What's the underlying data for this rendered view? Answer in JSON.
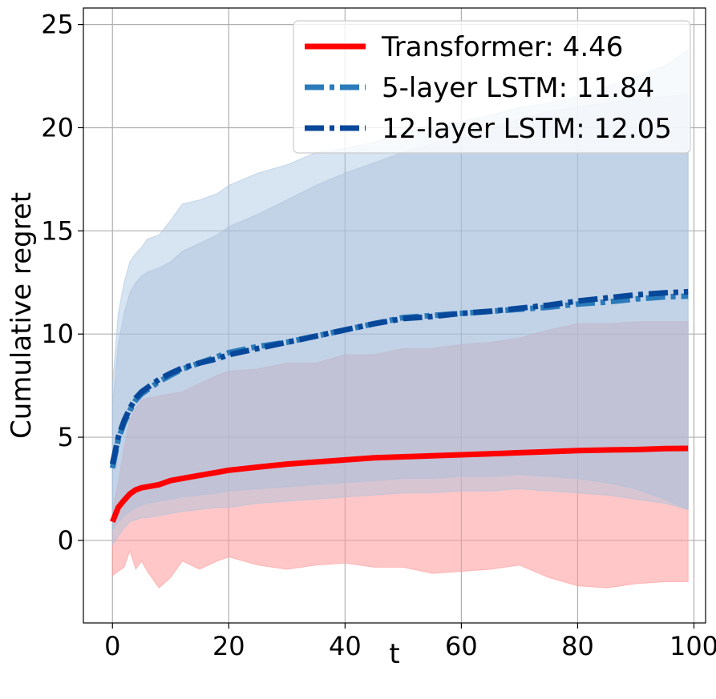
{
  "chart_data": {
    "type": "line",
    "xlabel": "t",
    "ylabel": "Cumulative regret",
    "xlim": [
      -5,
      102
    ],
    "ylim": [
      -4,
      25.8
    ],
    "xticks": [
      0,
      20,
      40,
      60,
      80,
      100
    ],
    "yticks": [
      0,
      5,
      10,
      15,
      20,
      25
    ],
    "grid": true,
    "legend_position": "top-right",
    "series": [
      {
        "name": "Transformer: 4.46",
        "color": "#ff0000",
        "band_color": "#ff9999",
        "style": "solid",
        "x": [
          0,
          1,
          2,
          3,
          4,
          5,
          6,
          8,
          10,
          12,
          15,
          18,
          20,
          25,
          30,
          35,
          40,
          45,
          50,
          55,
          60,
          65,
          70,
          75,
          80,
          85,
          90,
          95,
          99
        ],
        "mean": [
          0.9,
          1.6,
          1.95,
          2.25,
          2.45,
          2.55,
          2.6,
          2.7,
          2.9,
          3.0,
          3.15,
          3.3,
          3.4,
          3.55,
          3.7,
          3.8,
          3.9,
          4.0,
          4.05,
          4.1,
          4.15,
          4.2,
          4.25,
          4.3,
          4.35,
          4.38,
          4.4,
          4.45,
          4.46
        ],
        "upper": [
          1.5,
          2.8,
          4.5,
          5.9,
          6.4,
          6.8,
          6.9,
          7.0,
          7.1,
          7.2,
          7.6,
          8.0,
          8.2,
          8.3,
          8.6,
          8.6,
          9.0,
          9.0,
          9.3,
          9.3,
          9.5,
          9.6,
          9.8,
          10.2,
          10.5,
          10.5,
          10.6,
          10.6,
          10.6
        ],
        "lower": [
          -1.7,
          -1.5,
          -1.3,
          -0.5,
          -1.4,
          -1.0,
          -1.5,
          -2.3,
          -1.8,
          -1.0,
          -1.4,
          -1.0,
          -0.8,
          -1.2,
          -1.4,
          -1.2,
          -1.1,
          -1.3,
          -1.3,
          -1.6,
          -1.5,
          -1.4,
          -1.2,
          -1.8,
          -2.2,
          -2.3,
          -2.1,
          -2.0,
          -2.0
        ]
      },
      {
        "name": "5-layer LSTM: 11.84",
        "color": "#2b7bba",
        "band_color": "#a6c4e0",
        "style": "dashdot",
        "x": [
          0,
          1,
          2,
          3,
          4,
          5,
          6,
          8,
          10,
          12,
          15,
          18,
          20,
          25,
          30,
          35,
          40,
          45,
          50,
          55,
          60,
          65,
          70,
          75,
          80,
          85,
          90,
          95,
          99
        ],
        "mean": [
          3.5,
          4.9,
          5.7,
          6.3,
          6.8,
          7.1,
          7.3,
          7.7,
          8.0,
          8.3,
          8.6,
          8.9,
          9.1,
          9.4,
          9.6,
          9.9,
          10.2,
          10.5,
          10.8,
          10.9,
          11.0,
          11.1,
          11.2,
          11.3,
          11.45,
          11.55,
          11.7,
          11.8,
          11.84
        ],
        "upper": [
          7.5,
          11.0,
          12.5,
          13.5,
          13.9,
          14.2,
          14.6,
          14.8,
          15.5,
          16.3,
          16.5,
          16.8,
          17.2,
          17.8,
          18.2,
          18.8,
          19.0,
          19.3,
          19.8,
          20.0,
          20.3,
          20.6,
          21.0,
          21.2,
          21.5,
          22.0,
          22.5,
          23.0,
          23.8
        ],
        "lower": [
          -0.2,
          0.2,
          0.6,
          0.9,
          1.0,
          1.1,
          1.1,
          1.2,
          1.3,
          1.4,
          1.5,
          1.6,
          1.6,
          1.8,
          1.9,
          2.0,
          2.1,
          2.2,
          2.3,
          2.3,
          2.4,
          2.4,
          2.5,
          2.4,
          2.3,
          2.2,
          2.0,
          1.8,
          1.5
        ]
      },
      {
        "name": "12-layer LSTM: 12.05",
        "color": "#08489a",
        "band_color": "#a9bfdb",
        "style": "dashdot",
        "x": [
          0,
          1,
          2,
          3,
          4,
          5,
          6,
          8,
          10,
          12,
          15,
          18,
          20,
          25,
          30,
          35,
          40,
          45,
          50,
          55,
          60,
          65,
          70,
          75,
          80,
          85,
          90,
          95,
          99
        ],
        "mean": [
          3.7,
          5.0,
          5.8,
          6.4,
          6.9,
          7.2,
          7.4,
          7.8,
          8.1,
          8.35,
          8.6,
          8.8,
          9.0,
          9.3,
          9.6,
          9.9,
          10.2,
          10.5,
          10.75,
          10.85,
          11.0,
          11.1,
          11.25,
          11.4,
          11.6,
          11.75,
          11.9,
          12.0,
          12.05
        ],
        "upper": [
          6.5,
          9.5,
          11.0,
          12.0,
          12.5,
          12.8,
          13.0,
          13.2,
          13.5,
          14.0,
          14.4,
          14.8,
          15.2,
          15.8,
          16.5,
          17.2,
          17.8,
          18.3,
          18.8,
          19.2,
          19.6,
          20.0,
          20.4,
          20.8,
          21.0,
          21.2,
          21.4,
          21.5,
          21.6
        ],
        "lower": [
          0.5,
          0.9,
          1.2,
          1.4,
          1.6,
          1.7,
          1.8,
          1.9,
          2.0,
          2.1,
          2.2,
          2.3,
          2.4,
          2.5,
          2.6,
          2.7,
          2.8,
          2.9,
          3.0,
          3.0,
          3.1,
          3.1,
          3.2,
          3.1,
          3.0,
          2.8,
          2.5,
          2.0,
          1.5
        ]
      }
    ]
  }
}
